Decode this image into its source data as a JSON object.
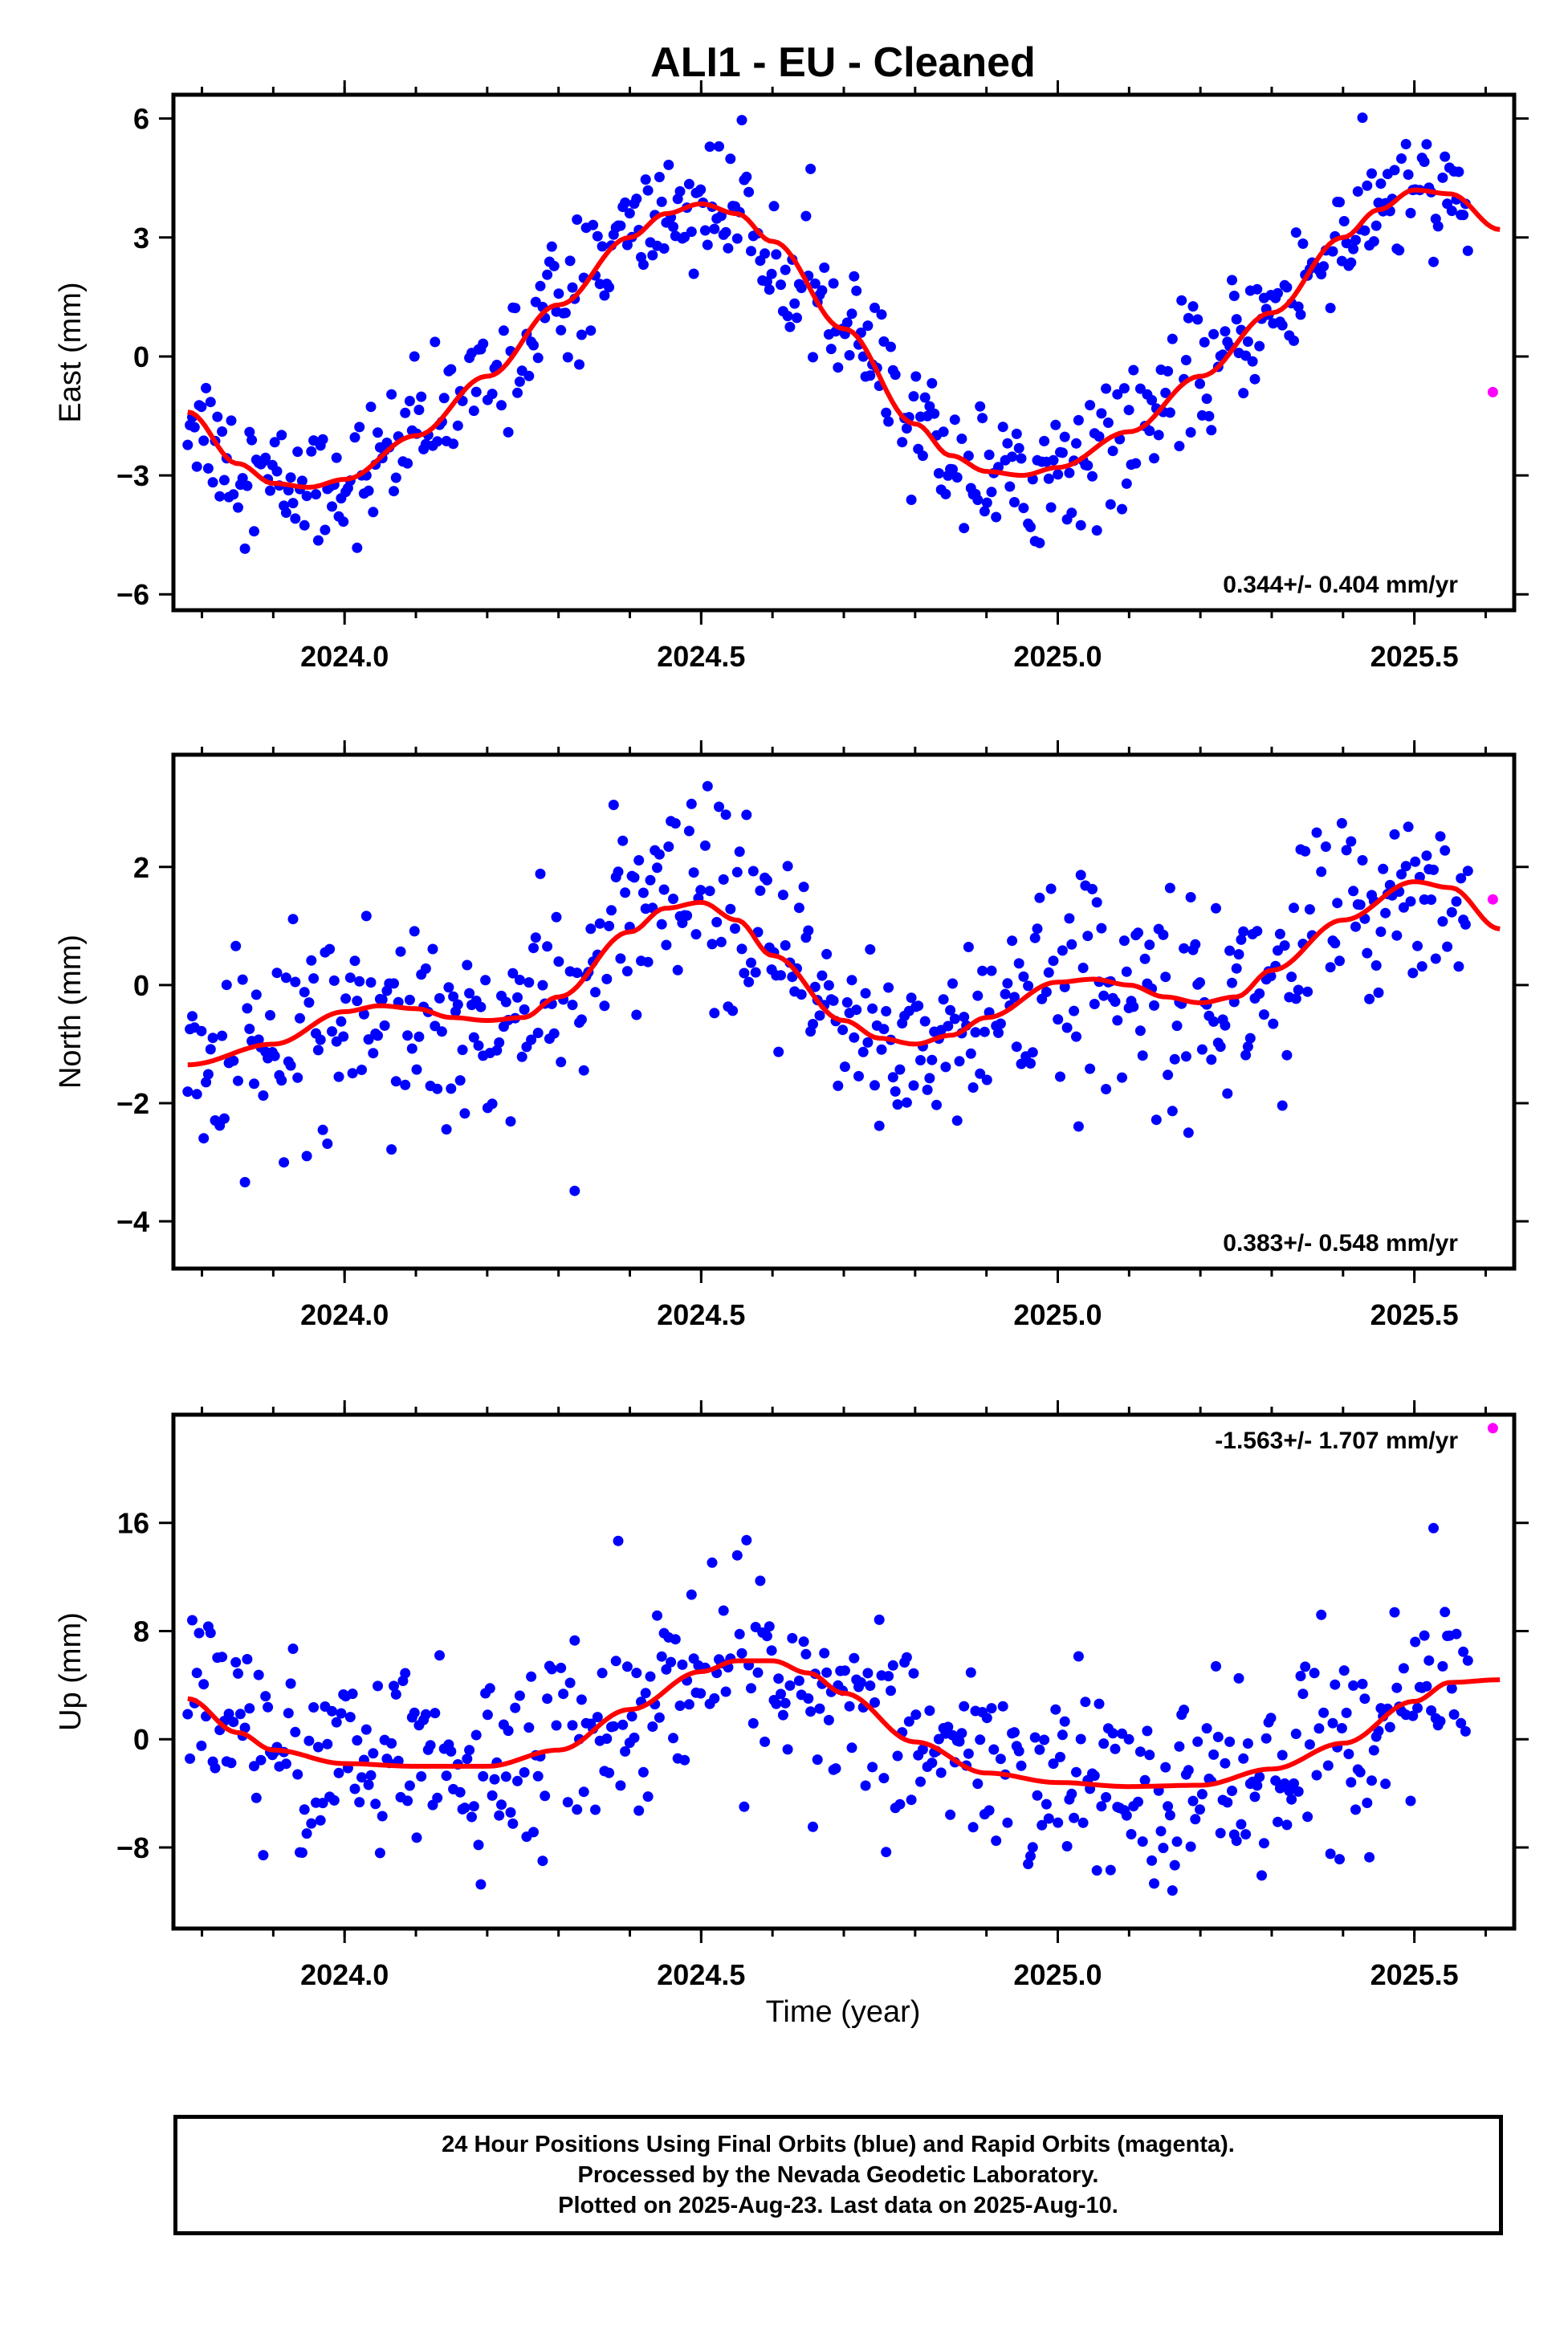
{
  "figure": {
    "title": "ALI1  - EU - Cleaned",
    "xlabel": "Time (year)",
    "colors": {
      "final_points": "#0000ff",
      "rapid_points": "#ff00ff",
      "fit_curve": "#ff0000",
      "frame": "#000000"
    }
  },
  "chart_data": [
    {
      "type": "scatter",
      "name": "East",
      "ylabel": "East (mm)",
      "xlim": [
        2023.76,
        2025.64
      ],
      "ylim": [
        -6.4,
        6.6
      ],
      "x_ticks": [
        2024.0,
        2024.5,
        2025.0,
        2025.5
      ],
      "x_tick_labels": [
        "2024.0",
        "2024.5",
        "2025.0",
        "2025.5"
      ],
      "y_ticks": [
        -6,
        -3,
        0,
        3,
        6
      ],
      "y_tick_labels": [
        "−6",
        "−3",
        "0",
        "3",
        "6"
      ],
      "rate_label": "0.344+/- 0.404 mm/yr",
      "rate_position": "bottom-right",
      "fit_x": [
        2023.78,
        2023.85,
        2023.9,
        2023.95,
        2024.0,
        2024.1,
        2024.2,
        2024.3,
        2024.4,
        2024.45,
        2024.5,
        2024.55,
        2024.6,
        2024.7,
        2024.8,
        2024.85,
        2024.9,
        2024.95,
        2025.0,
        2025.1,
        2025.2,
        2025.3,
        2025.4,
        2025.45,
        2025.5,
        2025.55,
        2025.62
      ],
      "fit_y": [
        -1.4,
        -2.7,
        -3.2,
        -3.3,
        -3.1,
        -2.0,
        -0.5,
        1.3,
        3.0,
        3.6,
        3.85,
        3.6,
        2.9,
        0.7,
        -1.7,
        -2.5,
        -2.9,
        -3.0,
        -2.8,
        -1.9,
        -0.5,
        1.1,
        3.0,
        3.7,
        4.2,
        4.1,
        3.2
      ],
      "rapid_points": [
        [
          2025.61,
          -0.9
        ]
      ],
      "noise_sd": 0.8,
      "final_range": [
        2023.78,
        2025.575
      ]
    },
    {
      "type": "scatter",
      "name": "North",
      "ylabel": "North (mm)",
      "xlim": [
        2023.76,
        2025.64
      ],
      "ylim": [
        -4.8,
        3.9
      ],
      "x_ticks": [
        2024.0,
        2024.5,
        2025.0,
        2025.5
      ],
      "x_tick_labels": [
        "2024.0",
        "2024.5",
        "2025.0",
        "2025.5"
      ],
      "y_ticks": [
        -4,
        -2,
        0,
        2
      ],
      "y_tick_labels": [
        "−4",
        "−2",
        "0",
        "2"
      ],
      "rate_label": "0.383+/- 0.548 mm/yr",
      "rate_position": "bottom-right",
      "fit_x": [
        2023.78,
        2023.9,
        2024.0,
        2024.05,
        2024.1,
        2024.15,
        2024.2,
        2024.25,
        2024.3,
        2024.4,
        2024.45,
        2024.5,
        2024.55,
        2024.6,
        2024.7,
        2024.75,
        2024.8,
        2024.85,
        2024.9,
        2025.0,
        2025.05,
        2025.1,
        2025.15,
        2025.2,
        2025.25,
        2025.3,
        2025.4,
        2025.5,
        2025.55,
        2025.62
      ],
      "fit_y": [
        -1.35,
        -1.0,
        -0.45,
        -0.35,
        -0.4,
        -0.55,
        -0.6,
        -0.55,
        -0.2,
        0.9,
        1.3,
        1.4,
        1.1,
        0.5,
        -0.6,
        -0.9,
        -1.0,
        -0.85,
        -0.55,
        0.05,
        0.1,
        0.0,
        -0.2,
        -0.3,
        -0.2,
        0.25,
        1.1,
        1.75,
        1.65,
        0.95
      ],
      "rapid_points": [
        [
          2025.61,
          1.45
        ]
      ],
      "noise_sd": 0.85,
      "final_range": [
        2023.78,
        2025.575
      ]
    },
    {
      "type": "scatter",
      "name": "Up",
      "ylabel": "Up (mm)",
      "xlim": [
        2023.76,
        2025.64
      ],
      "ylim": [
        -14,
        24
      ],
      "x_ticks": [
        2024.0,
        2024.5,
        2025.0,
        2025.5
      ],
      "x_tick_labels": [
        "2024.0",
        "2024.5",
        "2025.0",
        "2025.5"
      ],
      "y_ticks": [
        -8,
        0,
        8,
        16
      ],
      "y_tick_labels": [
        "−8",
        "0",
        "8",
        "16"
      ],
      "rate_label": "-1.563+/- 1.707 mm/yr",
      "rate_position": "top-right",
      "fit_x": [
        2023.78,
        2023.85,
        2023.9,
        2024.0,
        2024.1,
        2024.2,
        2024.3,
        2024.4,
        2024.5,
        2024.55,
        2024.6,
        2024.65,
        2024.7,
        2024.8,
        2024.9,
        2025.0,
        2025.1,
        2025.2,
        2025.3,
        2025.4,
        2025.5,
        2025.55,
        2025.62
      ],
      "fit_y": [
        3.0,
        0.5,
        -0.8,
        -1.8,
        -2.0,
        -2.0,
        -0.8,
        2.2,
        5.0,
        5.8,
        5.8,
        4.9,
        3.4,
        -0.2,
        -2.5,
        -3.2,
        -3.5,
        -3.4,
        -2.2,
        -0.3,
        2.8,
        4.2,
        4.4
      ],
      "rapid_points": [
        [
          2025.61,
          23.0
        ]
      ],
      "noise_sd": 3.6,
      "final_range": [
        2023.78,
        2025.575
      ]
    }
  ],
  "footer": {
    "line1": "24 Hour Positions Using Final Orbits (blue) and Rapid Orbits (magenta).",
    "line2": "Processed by the Nevada Geodetic Laboratory.",
    "line3": "Plotted on 2025-Aug-23. Last data on 2025-Aug-10."
  }
}
